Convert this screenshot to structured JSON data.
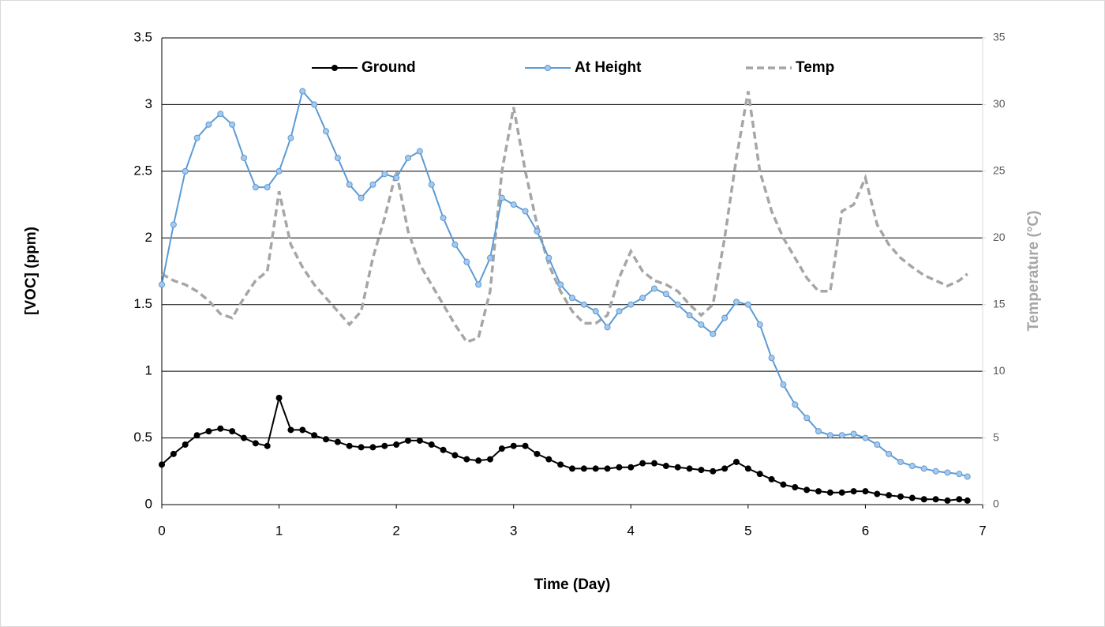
{
  "chart_data": {
    "type": "line",
    "x_label": "Time (Day)",
    "y_label": "[VOC] (ppm)",
    "y2_label": "Temperature (°C)",
    "x": [
      0,
      0.1,
      0.2,
      0.3,
      0.4,
      0.5,
      0.6,
      0.7,
      0.8,
      0.9,
      1,
      1.1,
      1.2,
      1.3,
      1.4,
      1.5,
      1.6,
      1.7,
      1.8,
      1.9,
      2,
      2.1,
      2.2,
      2.3,
      2.4,
      2.5,
      2.6,
      2.7,
      2.8,
      2.9,
      3,
      3.1,
      3.2,
      3.3,
      3.4,
      3.5,
      3.6,
      3.7,
      3.8,
      3.9,
      4,
      4.1,
      4.2,
      4.3,
      4.4,
      4.5,
      4.6,
      4.7,
      4.8,
      4.9,
      5,
      5.1,
      5.2,
      5.3,
      5.4,
      5.5,
      5.6,
      5.7,
      5.8,
      5.9,
      6,
      6.1,
      6.2,
      6.3,
      6.4,
      6.5,
      6.6,
      6.7,
      6.8,
      6.87
    ],
    "series": [
      {
        "name": "Temp",
        "color": "#a6a6a6",
        "axis": "y2",
        "dashed": true,
        "markers": false,
        "values": [
          17.3,
          16.8,
          16.5,
          16,
          15.3,
          14.3,
          14,
          15.5,
          16.8,
          17.5,
          23.5,
          19.5,
          17.8,
          16.5,
          15.5,
          14.5,
          13.5,
          14.5,
          18.5,
          21.5,
          25,
          20.5,
          18,
          16.5,
          15,
          13.5,
          12.2,
          12.5,
          16,
          25,
          29.8,
          25,
          21,
          18,
          16,
          14.5,
          13.6,
          13.6,
          14.2,
          17,
          19,
          17.5,
          16.8,
          16.5,
          16,
          15,
          14.2,
          15,
          20,
          26,
          31,
          25,
          22,
          20,
          18.5,
          17,
          16,
          16,
          22,
          22.5,
          24.5,
          21,
          19.5,
          18.5,
          17.8,
          17.2,
          16.8,
          16.4,
          16.8,
          17.3
        ]
      },
      {
        "name": "At Height",
        "color": "#5b9bd5",
        "dashed": false,
        "markers": true,
        "values": [
          1.65,
          2.1,
          2.5,
          2.75,
          2.85,
          2.93,
          2.85,
          2.6,
          2.38,
          2.38,
          2.5,
          2.75,
          3.1,
          3.0,
          2.8,
          2.6,
          2.4,
          2.3,
          2.4,
          2.48,
          2.45,
          2.6,
          2.65,
          2.4,
          2.15,
          1.95,
          1.82,
          1.65,
          1.85,
          2.3,
          2.25,
          2.2,
          2.05,
          1.85,
          1.65,
          1.55,
          1.5,
          1.45,
          1.33,
          1.45,
          1.5,
          1.55,
          1.62,
          1.58,
          1.5,
          1.42,
          1.35,
          1.28,
          1.4,
          1.52,
          1.5,
          1.35,
          1.1,
          0.9,
          0.75,
          0.65,
          0.55,
          0.52,
          0.52,
          0.53,
          0.5,
          0.45,
          0.38,
          0.32,
          0.29,
          0.27,
          0.25,
          0.24,
          0.23,
          0.21
        ]
      },
      {
        "name": "Ground",
        "color": "#000000",
        "dashed": false,
        "markers": true,
        "values": [
          0.3,
          0.38,
          0.45,
          0.52,
          0.55,
          0.57,
          0.55,
          0.5,
          0.46,
          0.44,
          0.8,
          0.56,
          0.56,
          0.52,
          0.49,
          0.47,
          0.44,
          0.43,
          0.43,
          0.44,
          0.45,
          0.48,
          0.48,
          0.45,
          0.41,
          0.37,
          0.34,
          0.33,
          0.34,
          0.42,
          0.44,
          0.44,
          0.38,
          0.34,
          0.3,
          0.27,
          0.27,
          0.27,
          0.27,
          0.28,
          0.28,
          0.31,
          0.31,
          0.29,
          0.28,
          0.27,
          0.26,
          0.25,
          0.27,
          0.32,
          0.27,
          0.23,
          0.19,
          0.15,
          0.13,
          0.11,
          0.1,
          0.09,
          0.09,
          0.1,
          0.1,
          0.08,
          0.07,
          0.06,
          0.05,
          0.04,
          0.04,
          0.03,
          0.04,
          0.03
        ]
      }
    ],
    "legend_order": [
      2,
      1,
      0
    ],
    "xlim": [
      0,
      7
    ],
    "xticks": [
      0,
      1,
      2,
      3,
      4,
      5,
      6,
      7
    ],
    "ylim": [
      0,
      3.5
    ],
    "yticks": [
      0,
      0.5,
      1,
      1.5,
      2,
      2.5,
      3,
      3.5
    ],
    "y2lim": [
      0,
      35
    ],
    "y2ticks": [
      0,
      5,
      10,
      15,
      20,
      25,
      30,
      35
    ],
    "grid": true
  }
}
